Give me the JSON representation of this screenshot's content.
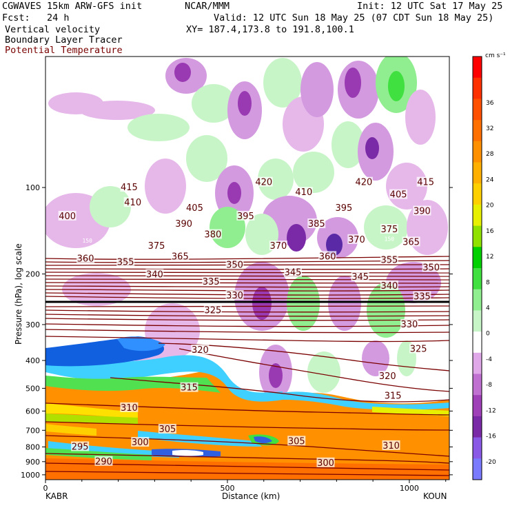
{
  "header": {
    "left1": "CGWAVES 15km ARW-GFS init",
    "left2": "Fcst:   24 h",
    "left3": "Vertical velocity",
    "left4": "Boundary Layer Tracer",
    "left5": "Potential Temperature",
    "mid1": "NCAR/MMM",
    "right1": "Init: 12 UTC Sat 17 May 25",
    "right2": "Valid: 12 UTC Sun 18 May 25 (07 CDT Sun 18 May 25)",
    "xy": "XY= 187.4,173.8 to 191.8,100.1"
  },
  "colors": {
    "theta": "#7a0000",
    "title_theta": "#7a0000",
    "colorbar": [
      "#7a7aff",
      "#8a5ae6",
      "#7a2aa6",
      "#a040b8",
      "#c070d0",
      "#e0a8e8",
      "#ffffff",
      "#c8f5c8",
      "#90ee90",
      "#40e040",
      "#00d000",
      "#90e000",
      "#e6f000",
      "#ffd000",
      "#ffb000",
      "#ff9000",
      "#ff7000",
      "#ff5000",
      "#ff3000",
      "#ff0000"
    ]
  },
  "chart_data": {
    "type": "cross-section",
    "title": "Vertical velocity / Boundary Layer Tracer / Potential Temperature",
    "xlabel": "Distance (km)",
    "ylabel": "Pressure (hPa), log scale",
    "x_ticks": [
      "0",
      "500",
      "1000"
    ],
    "x_ticks_values": [
      0,
      500,
      1000
    ],
    "x_range": [
      0,
      1110
    ],
    "y_ticks": [
      "100",
      "200",
      "300",
      "400",
      "500",
      "600",
      "700",
      "800",
      "900",
      "1000"
    ],
    "y_ticks_values": [
      100,
      200,
      300,
      400,
      500,
      600,
      700,
      800,
      900,
      1000
    ],
    "y_range": [
      1040,
      35
    ],
    "y_scale": "log",
    "endpoints": {
      "left": "KABR",
      "right": "KOUN"
    },
    "colorbar": {
      "units": "cm s⁻¹",
      "labels": [
        "36",
        "32",
        "28",
        "24",
        "20",
        "16",
        "12",
        "8",
        "4",
        "0",
        "-4",
        "-8",
        "-12",
        "-16",
        "-20"
      ]
    },
    "theta_labels": [
      {
        "v": "415",
        "x": 230,
        "p": 100
      },
      {
        "v": "420",
        "x": 600,
        "p": 96
      },
      {
        "v": "420",
        "x": 875,
        "p": 96
      },
      {
        "v": "415",
        "x": 1045,
        "p": 96
      },
      {
        "v": "410",
        "x": 240,
        "p": 113
      },
      {
        "v": "405",
        "x": 410,
        "p": 118
      },
      {
        "v": "410",
        "x": 710,
        "p": 104
      },
      {
        "v": "405",
        "x": 970,
        "p": 106
      },
      {
        "v": "400",
        "x": 60,
        "p": 126
      },
      {
        "v": "390",
        "x": 380,
        "p": 134
      },
      {
        "v": "395",
        "x": 550,
        "p": 126
      },
      {
        "v": "395",
        "x": 820,
        "p": 118
      },
      {
        "v": "390",
        "x": 1035,
        "p": 121
      },
      {
        "v": "380",
        "x": 460,
        "p": 146
      },
      {
        "v": "385",
        "x": 745,
        "p": 134
      },
      {
        "v": "375",
        "x": 945,
        "p": 140
      },
      {
        "v": "375",
        "x": 305,
        "p": 160
      },
      {
        "v": "370",
        "x": 640,
        "p": 160
      },
      {
        "v": "370",
        "x": 855,
        "p": 152
      },
      {
        "v": "365",
        "x": 1005,
        "p": 155
      },
      {
        "v": "360",
        "x": 110,
        "p": 177
      },
      {
        "v": "355",
        "x": 220,
        "p": 182
      },
      {
        "v": "365",
        "x": 370,
        "p": 174
      },
      {
        "v": "350",
        "x": 520,
        "p": 186
      },
      {
        "v": "360",
        "x": 775,
        "p": 174
      },
      {
        "v": "355",
        "x": 945,
        "p": 179
      },
      {
        "v": "350",
        "x": 1060,
        "p": 190
      },
      {
        "v": "340",
        "x": 300,
        "p": 201
      },
      {
        "v": "335",
        "x": 455,
        "p": 213
      },
      {
        "v": "345",
        "x": 680,
        "p": 198
      },
      {
        "v": "345",
        "x": 865,
        "p": 205
      },
      {
        "v": "340",
        "x": 945,
        "p": 220
      },
      {
        "v": "330",
        "x": 520,
        "p": 238
      },
      {
        "v": "335",
        "x": 1035,
        "p": 240
      },
      {
        "v": "325",
        "x": 460,
        "p": 268
      },
      {
        "v": "330",
        "x": 1000,
        "p": 300
      },
      {
        "v": "320",
        "x": 425,
        "p": 368
      },
      {
        "v": "325",
        "x": 1025,
        "p": 365
      },
      {
        "v": "320",
        "x": 940,
        "p": 454
      },
      {
        "v": "315",
        "x": 395,
        "p": 498
      },
      {
        "v": "315",
        "x": 955,
        "p": 532
      },
      {
        "v": "310",
        "x": 230,
        "p": 585
      },
      {
        "v": "305",
        "x": 335,
        "p": 695
      },
      {
        "v": "305",
        "x": 690,
        "p": 765
      },
      {
        "v": "310",
        "x": 950,
        "p": 793
      },
      {
        "v": "295",
        "x": 95,
        "p": 800
      },
      {
        "v": "300",
        "x": 260,
        "p": 772
      },
      {
        "v": "290",
        "x": 160,
        "p": 900
      },
      {
        "v": "300",
        "x": 770,
        "p": 910
      }
    ],
    "theta_line_labels": [
      {
        "v": "150",
        "x": 115,
        "p": 153
      },
      {
        "v": "150",
        "x": 945,
        "p": 151
      }
    ]
  }
}
